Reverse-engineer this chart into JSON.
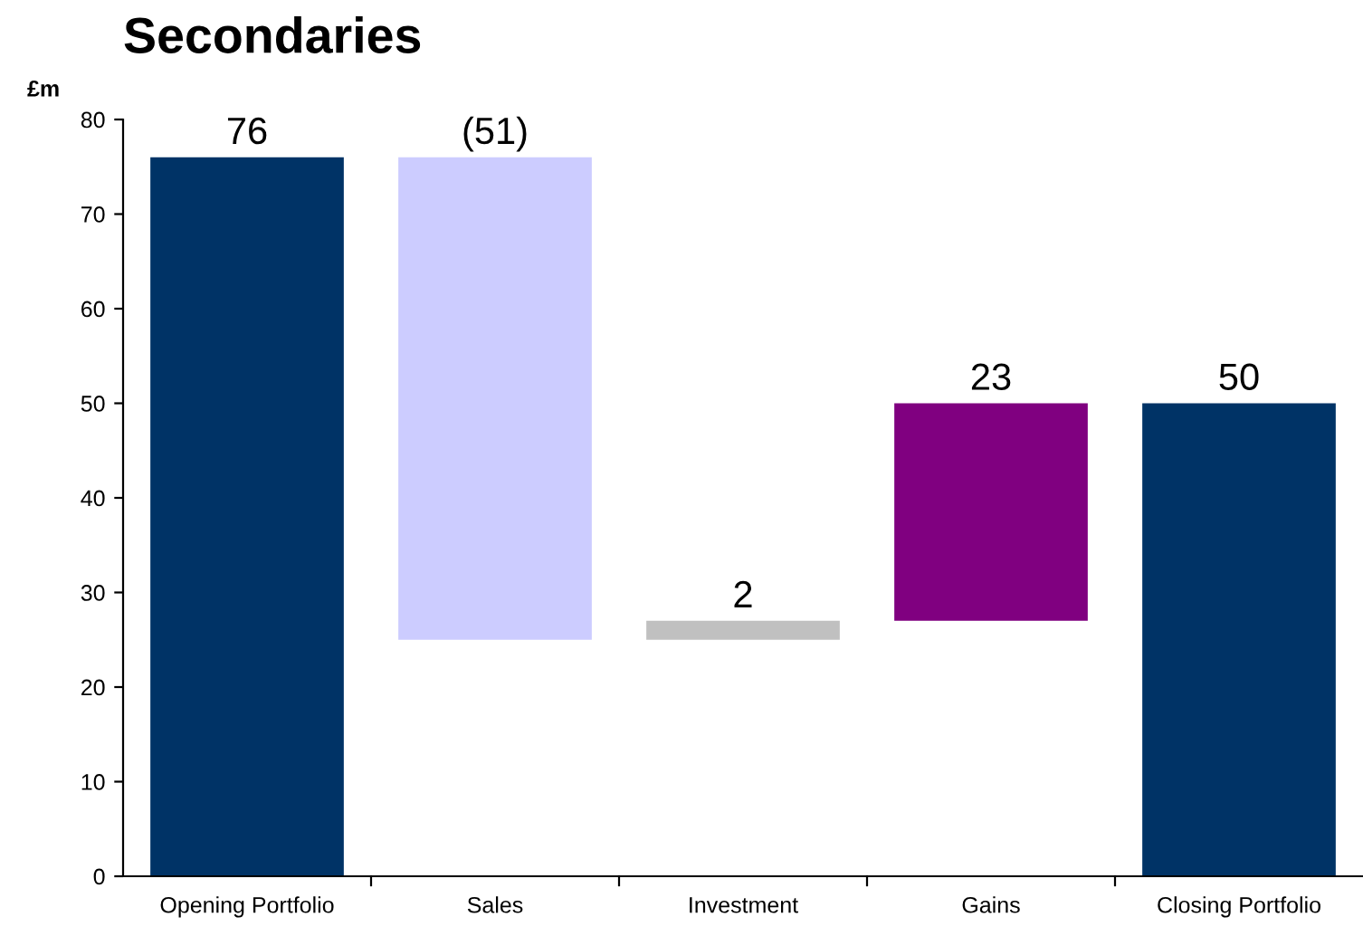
{
  "chart_data": {
    "type": "bar",
    "title": "Secondaries",
    "ylabel": "£m",
    "categories": [
      "Opening Portfolio",
      "Sales",
      "Investment",
      "Gains",
      "Closing Portfolio"
    ],
    "values": [
      76,
      -51,
      2,
      23,
      50
    ],
    "base": [
      0,
      76,
      25,
      27,
      0
    ],
    "colors": [
      "#003366",
      "#ccccff",
      "#c0c0c0",
      "#800080",
      "#003366"
    ],
    "value_labels": [
      "76",
      "(51)",
      "2",
      "23",
      "50"
    ],
    "ylim": [
      0,
      80
    ],
    "yticks": [
      0,
      10,
      20,
      30,
      40,
      50,
      60,
      70,
      80
    ],
    "grid": false,
    "legend": false
  }
}
